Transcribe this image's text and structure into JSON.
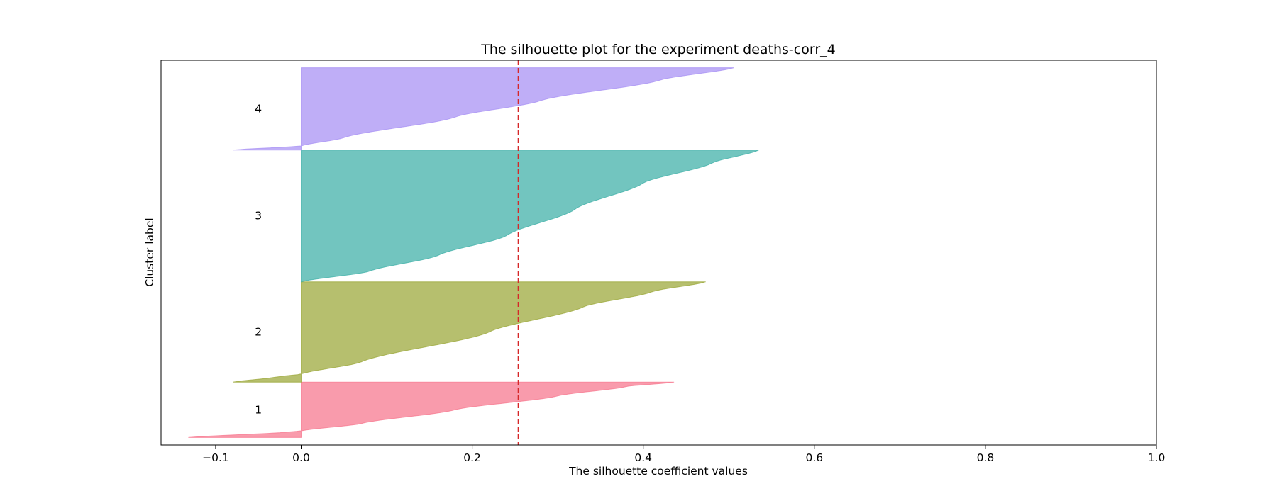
{
  "chart_data": {
    "type": "area",
    "title": "The silhouette plot for the experiment deaths-corr_4",
    "xlabel": "The silhouette coefficient values",
    "ylabel": "Cluster label",
    "xlim": [
      -0.17,
      1.0
    ],
    "x_ticks": [
      -0.1,
      0.0,
      0.2,
      0.4,
      0.6,
      0.8,
      1.0
    ],
    "x_tick_labels": [
      "−0.1",
      "0.0",
      "0.2",
      "0.4",
      "0.6",
      "0.8",
      "1.0"
    ],
    "y_ticks_shown": false,
    "grid": false,
    "average_silhouette": 0.254,
    "average_line_color": "#d62728",
    "clusters": [
      {
        "label": "1",
        "color": "#f77189",
        "y_range": [
          10,
          84
        ],
        "profile": [
          [
            0,
            -0.132
          ],
          [
            0.1,
            -0.015
          ],
          [
            0.12,
            0.0
          ],
          [
            0.25,
            0.07
          ],
          [
            0.5,
            0.18
          ],
          [
            0.75,
            0.3
          ],
          [
            0.92,
            0.38
          ],
          [
            1,
            0.436
          ]
        ]
      },
      {
        "label": "2",
        "color": "#97a431",
        "y_range": [
          84,
          218
        ],
        "profile": [
          [
            0,
            -0.08
          ],
          [
            0.05,
            -0.03
          ],
          [
            0.08,
            0.0
          ],
          [
            0.2,
            0.07
          ],
          [
            0.5,
            0.22
          ],
          [
            0.75,
            0.33
          ],
          [
            0.9,
            0.41
          ],
          [
            1,
            0.473
          ]
        ]
      },
      {
        "label": "3",
        "color": "#36ada4",
        "y_range": [
          218,
          394
        ],
        "profile": [
          [
            0,
            0.0
          ],
          [
            0.08,
            0.08
          ],
          [
            0.2,
            0.16
          ],
          [
            0.35,
            0.24
          ],
          [
            0.55,
            0.32
          ],
          [
            0.75,
            0.4
          ],
          [
            0.9,
            0.48
          ],
          [
            1,
            0.535
          ]
        ]
      },
      {
        "label": "4",
        "color": "#a48cf4",
        "y_range": [
          394,
          504
        ],
        "profile": [
          [
            0,
            -0.08
          ],
          [
            0.05,
            0.0
          ],
          [
            0.15,
            0.05
          ],
          [
            0.4,
            0.18
          ],
          [
            0.6,
            0.28
          ],
          [
            0.85,
            0.42
          ],
          [
            1,
            0.506
          ]
        ]
      }
    ]
  }
}
